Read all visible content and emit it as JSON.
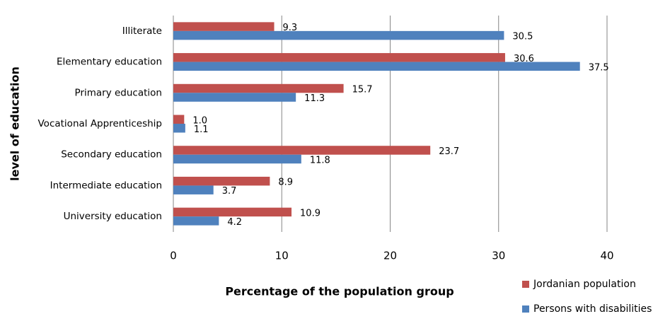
{
  "chart_data": {
    "type": "hbar",
    "x_label": "Percentage of the population group",
    "y_label": "level of education",
    "categories": [
      "Illiterate",
      "Elementary education",
      "Primary education",
      "Vocational Apprenticeship",
      "Secondary education",
      "Intermediate education",
      "University education"
    ],
    "series": [
      {
        "name": "Jordanian population",
        "color": "#c0504d",
        "values": [
          9.3,
          30.6,
          15.7,
          1.0,
          23.7,
          8.9,
          10.9
        ],
        "value_labels": [
          "9.3",
          "30.6",
          "15.7",
          "1.0",
          "23.7",
          "8.9",
          "10.9"
        ]
      },
      {
        "name": "Persons with disabilities",
        "color": "#4f81bd",
        "values": [
          30.5,
          37.5,
          11.3,
          1.1,
          11.8,
          3.7,
          4.2
        ]
      }
    ],
    "xlim": [
      0,
      40
    ],
    "xticks": [
      0,
      10,
      20,
      30,
      40
    ],
    "grid": true,
    "legend": "bottom-right"
  }
}
